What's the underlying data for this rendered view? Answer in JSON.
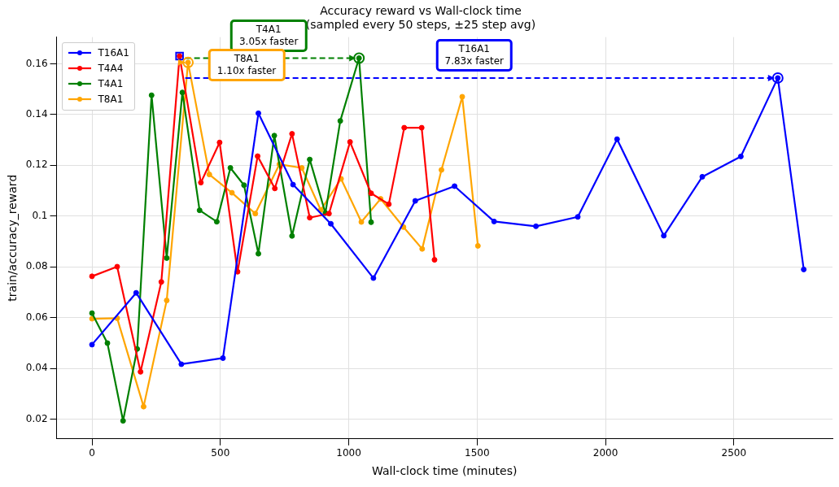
{
  "chart_data": {
    "type": "line",
    "title": "Accuracy reward vs Wall-clock time",
    "subtitle": "(sampled every 50 steps, ±25 step avg)",
    "xlabel": "Wall-clock time (minutes)",
    "ylabel": "train/accuracy_reward",
    "xlim": [
      -138,
      2884
    ],
    "xticks": [
      0,
      500,
      1000,
      1500,
      2000,
      2500
    ],
    "ylim": [
      0.0123,
      0.1705
    ],
    "yticks": [
      0.02,
      0.04,
      0.06,
      0.08,
      0.1,
      0.12,
      0.14,
      0.16
    ],
    "grid": true,
    "legend": "top left",
    "marker": "circle",
    "line_style": "solid",
    "series": [
      {
        "name": "T16A1",
        "color": "#0000ff",
        "x": [
          0,
          172,
          348,
          510,
          648,
          783,
          930,
          1096,
          1259,
          1412,
          1566,
          1729,
          1892,
          2045,
          2227,
          2377,
          2527,
          2671,
          2772
        ],
        "values": [
          0.0494,
          0.0698,
          0.0417,
          0.0441,
          0.1405,
          0.1124,
          0.097,
          0.0756,
          0.106,
          0.1118,
          0.0979,
          0.096,
          0.0997,
          0.1303,
          0.0923,
          0.1155,
          0.1235,
          0.1544,
          0.079
        ]
      },
      {
        "name": "T4A4",
        "color": "#ff0000",
        "x": [
          0,
          98,
          189,
          270,
          341,
          424,
          497,
          567,
          645,
          712,
          779,
          848,
          923,
          1005,
          1087,
          1156,
          1216,
          1284,
          1334
        ],
        "values": [
          0.0763,
          0.0801,
          0.0387,
          0.0741,
          0.163,
          0.1132,
          0.129,
          0.0781,
          0.1236,
          0.1109,
          0.1324,
          0.0994,
          0.101,
          0.1292,
          0.109,
          0.1047,
          0.1348,
          0.1348,
          0.0828
        ]
      },
      {
        "name": "T4A1",
        "color": "#008000",
        "x": [
          0,
          60,
          121,
          176,
          232,
          291,
          352,
          419,
          486,
          539,
          592,
          648,
          710,
          779,
          848,
          909,
          967,
          1040,
          1087
        ],
        "values": [
          0.0618,
          0.05,
          0.0194,
          0.0477,
          0.1476,
          0.0835,
          0.1487,
          0.1023,
          0.0978,
          0.119,
          0.1122,
          0.0852,
          0.1317,
          0.0922,
          0.1223,
          0.1012,
          0.1375,
          0.1622,
          0.0976
        ]
      },
      {
        "name": "T8A1",
        "color": "#ffa500",
        "x": [
          0,
          98,
          201,
          291,
          374,
          457,
          545,
          636,
          730,
          817,
          891,
          970,
          1049,
          1124,
          1213,
          1286,
          1361,
          1442,
          1503
        ],
        "values": [
          0.0596,
          0.0598,
          0.025,
          0.0668,
          0.1605,
          0.1164,
          0.1092,
          0.101,
          0.1204,
          0.119,
          0.1024,
          0.1147,
          0.0977,
          0.1068,
          0.0957,
          0.0871,
          0.1182,
          0.147,
          0.0883
        ]
      },
      {
        "type": "scatter",
        "color": "#0000ff",
        "marker": "square",
        "x": [
          341
        ],
        "values": [
          0.163
        ]
      }
    ],
    "annotations": [
      "T16A1\n7.83x faster",
      "T4A1\n3.05x faster",
      "T8A1\n1.10x faster"
    ]
  }
}
